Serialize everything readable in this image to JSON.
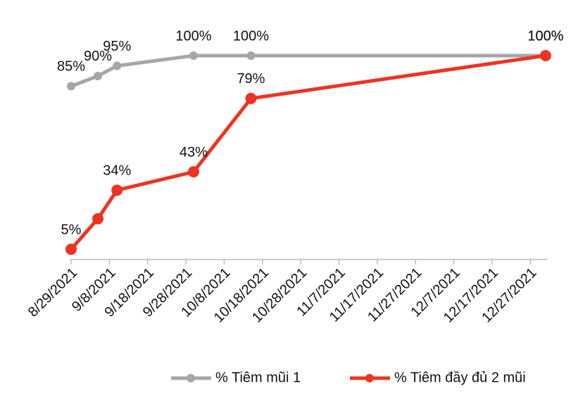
{
  "chart_data": {
    "type": "line",
    "x": [
      "2021-08-29",
      "2021-09-05",
      "2021-09-10",
      "2021-09-30",
      "2021-10-15",
      "2021-12-31"
    ],
    "series": [
      {
        "name": "% Tiêm mũi 1",
        "color": "#a6a6a6",
        "values": [
          85,
          90,
          95,
          100,
          100,
          100
        ],
        "value_labels": [
          "85%",
          "90%",
          "95%",
          "100%",
          "100%",
          "100%"
        ]
      },
      {
        "name": "% Tiêm đầy đủ 2 mũi",
        "color": "#ee3322",
        "values": [
          5,
          20,
          34,
          43,
          79,
          100
        ],
        "value_labels": [
          "5%",
          null,
          "34%",
          "43%",
          "79%",
          "100%"
        ]
      }
    ],
    "xlim": [
      "2021-08-29",
      "2021-12-31"
    ],
    "xticks": [
      {
        "value": "2021-08-29",
        "label": "8/29/2021"
      },
      {
        "value": "2021-09-08",
        "label": "9/8/2021"
      },
      {
        "value": "2021-09-18",
        "label": "9/18/2021"
      },
      {
        "value": "2021-09-28",
        "label": "9/28/2021"
      },
      {
        "value": "2021-10-08",
        "label": "10/8/2021"
      },
      {
        "value": "2021-10-18",
        "label": "10/18/2021"
      },
      {
        "value": "2021-10-28",
        "label": "10/28/2021"
      },
      {
        "value": "2021-11-07",
        "label": "11/7/2021"
      },
      {
        "value": "2021-11-17",
        "label": "11/17/2021"
      },
      {
        "value": "2021-11-27",
        "label": "11/27/2021"
      },
      {
        "value": "2021-12-07",
        "label": "12/7/2021"
      },
      {
        "value": "2021-12-17",
        "label": "12/17/2021"
      },
      {
        "value": "2021-12-27",
        "label": "12/27/2021"
      }
    ],
    "ylim": [
      0,
      100
    ],
    "grid": false,
    "legend": "bottom"
  }
}
